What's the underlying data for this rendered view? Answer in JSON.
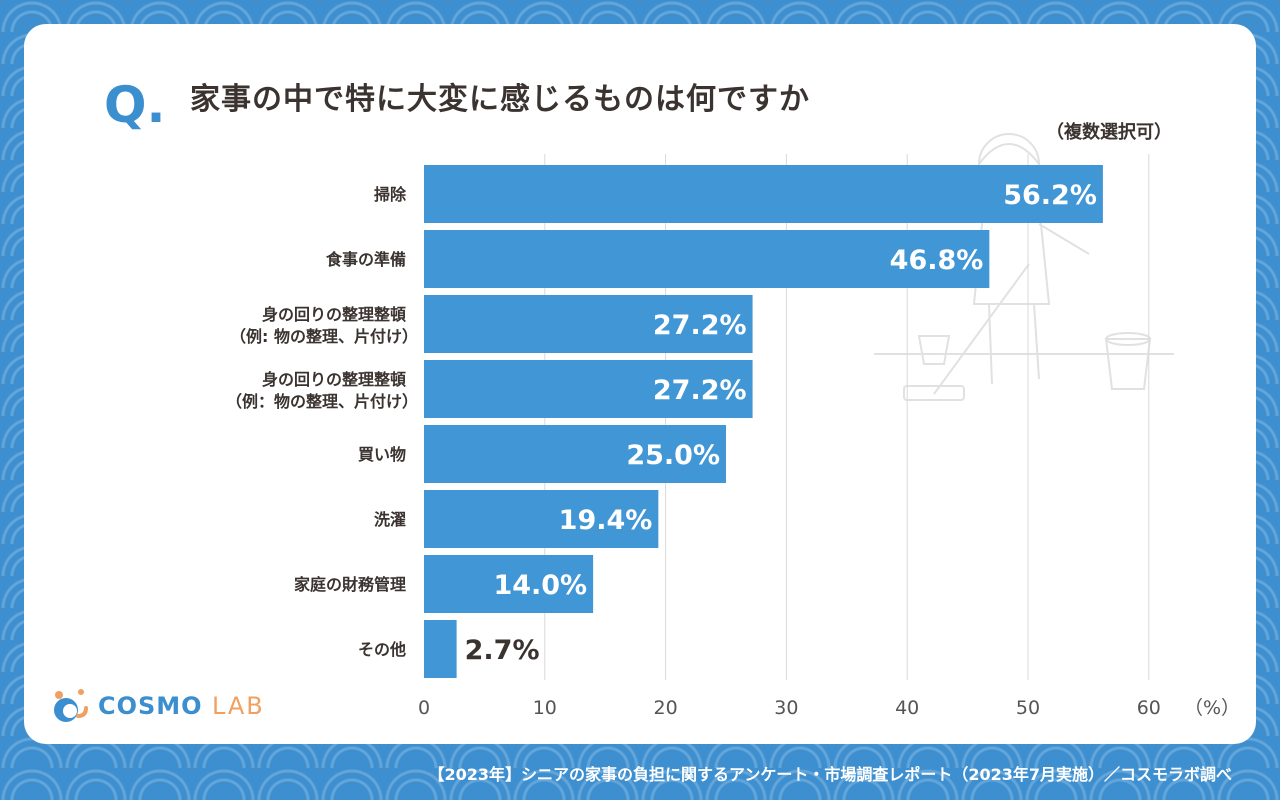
{
  "question_mark": "Q.",
  "title": "家事の中で特に大変に感じるものは何ですか",
  "subtitle": "（複数選択可）",
  "brand": {
    "name_main": "COSMO",
    "name_sub": "LAB"
  },
  "footer": "【2023年】シニアの家事の負担に関するアンケート・市場調査レポート（2023年7月実施）／コスモラボ調べ",
  "colors": {
    "bar": "#4196d6",
    "accent": "#3b8fcf",
    "background": "#3d8fd0"
  },
  "chart_data": {
    "type": "bar",
    "orientation": "horizontal",
    "categories": [
      [
        "掃除"
      ],
      [
        "食事の準備"
      ],
      [
        "身の回りの整理整頓",
        "（例: 物の整理、片付け）"
      ],
      [
        "身の回りの整理整頓",
        "（例：物の整理、片付け）"
      ],
      [
        "買い物"
      ],
      [
        "洗濯"
      ],
      [
        "家庭の財務管理"
      ],
      [
        "その他"
      ]
    ],
    "values": [
      56.2,
      46.8,
      27.2,
      27.2,
      25.0,
      19.4,
      14.0,
      2.7
    ],
    "value_labels": [
      "56.2%",
      "46.8%",
      "27.2%",
      "27.2%",
      "25.0%",
      "19.4%",
      "14.0%",
      "2.7%"
    ],
    "xlim": [
      0,
      60
    ],
    "xticks": [
      "0",
      "10",
      "20",
      "30",
      "40",
      "50",
      "60"
    ],
    "xunit": "（%）",
    "grid": true
  }
}
